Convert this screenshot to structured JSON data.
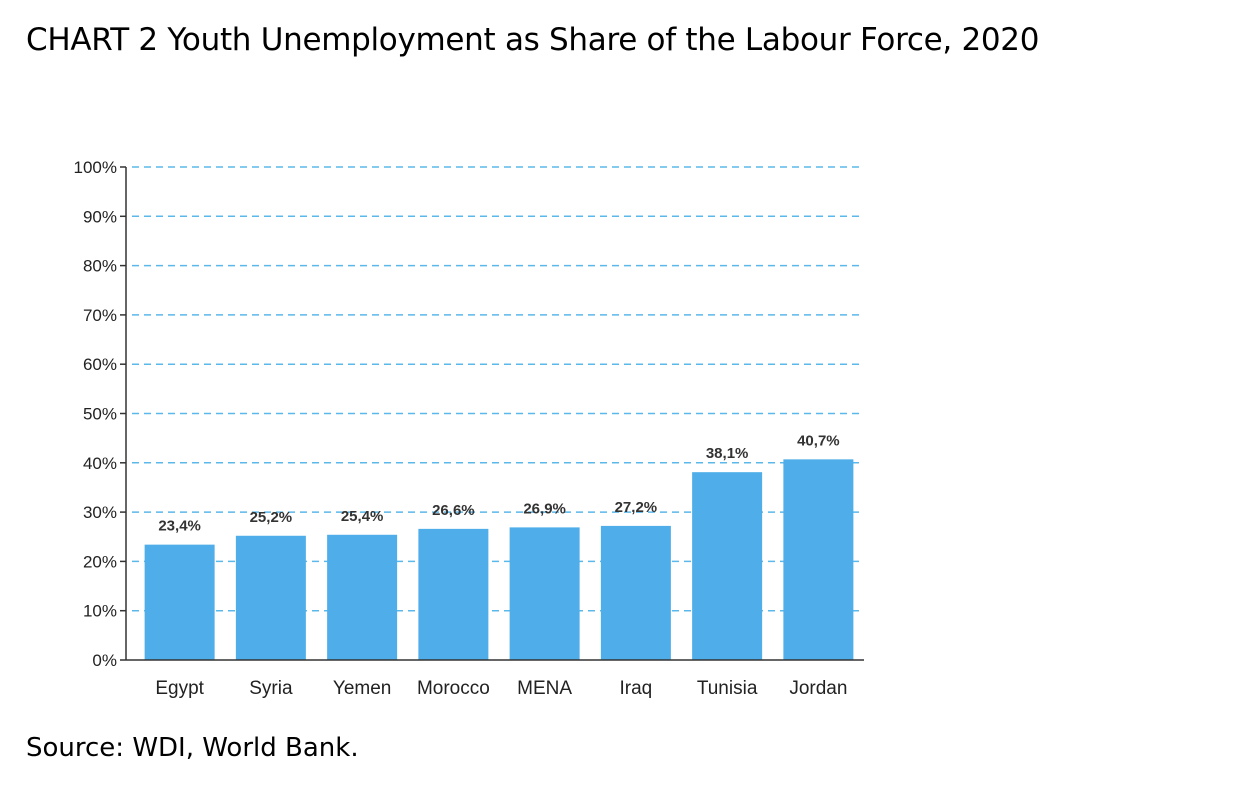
{
  "title": "CHART 2 Youth Unemployment as Share of the Labour Force, 2020",
  "source": "Source: WDI, World Bank.",
  "chart_data": {
    "type": "bar",
    "title": "CHART 2 Youth Unemployment as Share of the Labour Force, 2020",
    "categories": [
      "Egypt",
      "Syria",
      "Yemen",
      "Morocco",
      "MENA",
      "Iraq",
      "Tunisia",
      "Jordan"
    ],
    "values": [
      23.4,
      25.2,
      25.4,
      26.6,
      26.9,
      27.2,
      38.1,
      40.7
    ],
    "value_labels": [
      "23,4%",
      "25,2%",
      "25,4%",
      "26,6%",
      "26,9%",
      "27,2%",
      "38,1%",
      "40,7%"
    ],
    "yticks": [
      0,
      10,
      20,
      30,
      40,
      50,
      60,
      70,
      80,
      90,
      100
    ],
    "ytick_labels": [
      "0%",
      "10%",
      "20%",
      "30%",
      "40%",
      "50%",
      "60%",
      "70%",
      "80%",
      "90%",
      "100%"
    ],
    "ylim": [
      0,
      100
    ],
    "xlabel": "",
    "ylabel": "",
    "grid": true,
    "legend": false,
    "colors": {
      "bar": "#4faee9",
      "grid": "#5bb8ea",
      "axis": "#333333"
    }
  }
}
